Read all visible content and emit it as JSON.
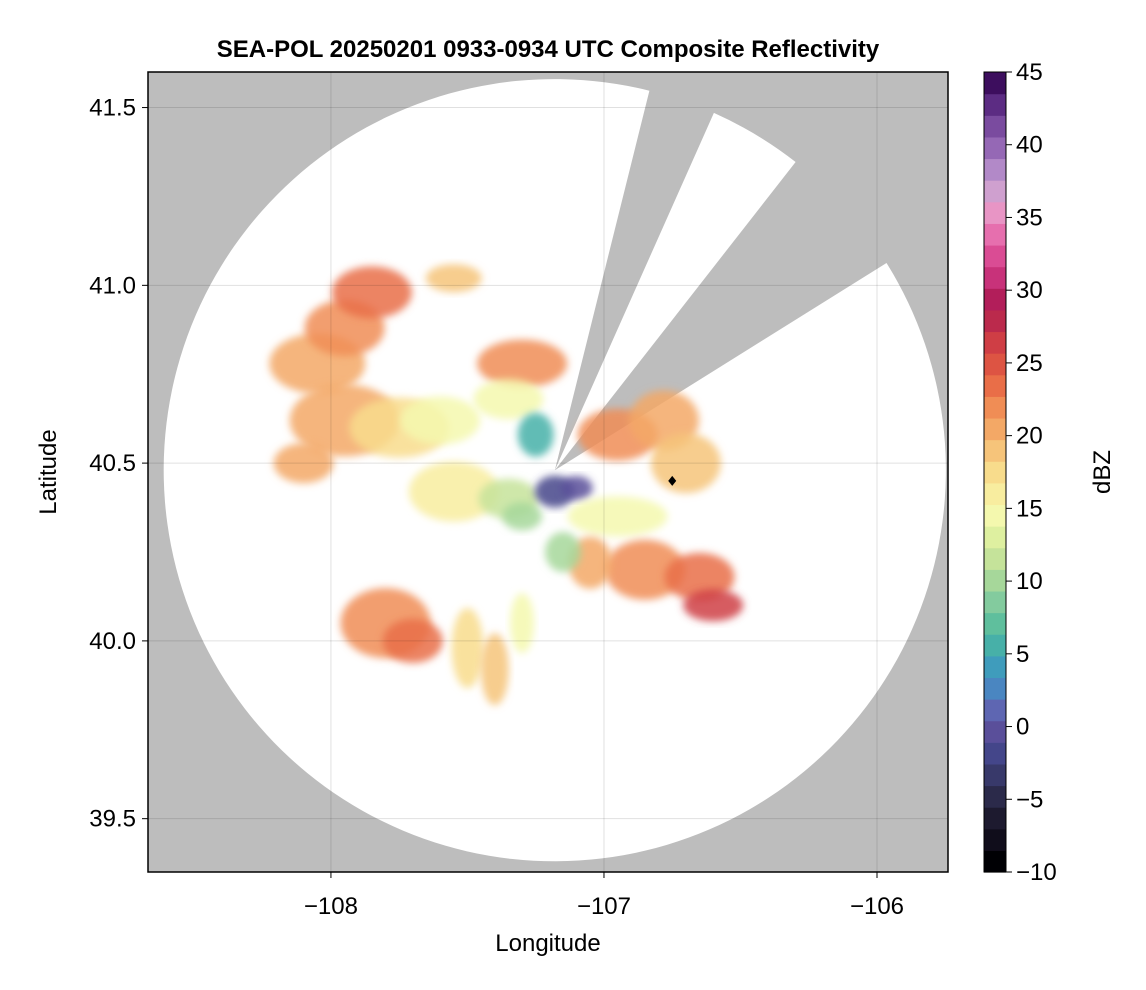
{
  "chart_data": {
    "type": "heatmap",
    "title": "SEA-POL 20250201 0933-0934 UTC Composite Reflectivity",
    "xlabel": "Longitude",
    "ylabel": "Latitude",
    "xlim": [
      -108.67,
      -105.74
    ],
    "ylim": [
      39.35,
      41.6
    ],
    "xticks": [
      -108,
      -107,
      -106
    ],
    "xtick_labels": [
      "−108",
      "−107",
      "−106"
    ],
    "yticks": [
      39.5,
      40.0,
      40.5,
      41.0,
      41.5
    ],
    "ytick_labels": [
      "39.5",
      "40.0",
      "40.5",
      "41.0",
      "41.5"
    ],
    "grid": true,
    "background_color": "#bdbdbd",
    "radar_site": {
      "lon": -107.18,
      "lat": 40.48
    },
    "coverage_radius_deg_lat": 1.1,
    "blocked_sectors_bearing_deg": [
      [
        14,
        24
      ],
      [
        38,
        58
      ]
    ],
    "marker": {
      "lon": -106.75,
      "lat": 40.45,
      "shape": "diamond",
      "color": "#000000"
    },
    "echo_regions": [
      {
        "name": "northwest band",
        "lon": -107.95,
        "lat": 40.7,
        "dbz": 22
      },
      {
        "name": "north cells",
        "lon": -107.55,
        "lat": 41.0,
        "dbz": 20
      },
      {
        "name": "north-central",
        "lon": -107.3,
        "lat": 40.75,
        "dbz": 22
      },
      {
        "name": "east sector",
        "lon": -106.85,
        "lat": 40.5,
        "dbz": 22
      },
      {
        "name": "southeast streaks",
        "lon": -106.7,
        "lat": 40.15,
        "dbz": 25
      },
      {
        "name": "southwest cell",
        "lon": -107.8,
        "lat": 40.05,
        "dbz": 22
      },
      {
        "name": "south streaks",
        "lon": -107.45,
        "lat": 39.95,
        "dbz": 17
      },
      {
        "name": "near-radar clutter",
        "lon": -107.15,
        "lat": 40.4,
        "dbz": -2
      }
    ],
    "colorbar": {
      "label": "dBZ",
      "min": -10,
      "max": 45,
      "ticks": [
        -10,
        -5,
        0,
        5,
        10,
        15,
        20,
        25,
        30,
        35,
        40,
        45
      ],
      "tick_labels": [
        "−10",
        "−5",
        "0",
        "5",
        "10",
        "15",
        "20",
        "25",
        "30",
        "35",
        "40",
        "45"
      ],
      "colors": [
        "#000004",
        "#100d1b",
        "#1d1a2f",
        "#2b2a4a",
        "#38396a",
        "#44468a",
        "#5a4f9a",
        "#5e66b2",
        "#4a86c1",
        "#3f9cbc",
        "#47b0a8",
        "#5fbf9d",
        "#83cb9e",
        "#a6d79a",
        "#c5e39a",
        "#def0a0",
        "#f4f8ae",
        "#f8ed9f",
        "#f8dc8c",
        "#f6c47a",
        "#f3a866",
        "#f08d55",
        "#e96e48",
        "#dd5443",
        "#cf3e45",
        "#bb2a4c",
        "#b21e5a",
        "#c8327a",
        "#da4c94",
        "#e66fae",
        "#e895c5",
        "#cfa0cf",
        "#b289c8",
        "#9568b5",
        "#7a4b9f",
        "#5c2c83",
        "#3d0e5e"
      ]
    }
  }
}
